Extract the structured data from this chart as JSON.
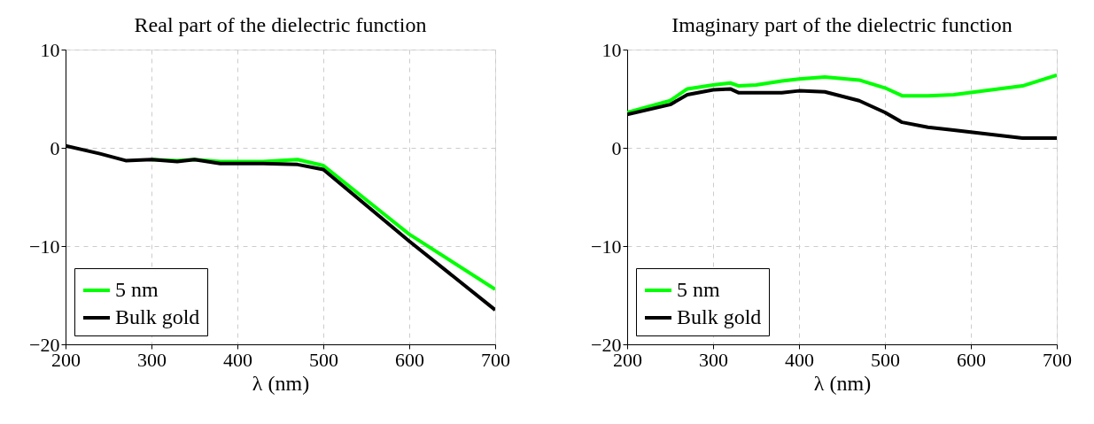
{
  "chart_data": [
    {
      "type": "line",
      "title": "Real part of the dielectric function",
      "xlabel": "λ (nm)",
      "xlim": [
        200,
        700
      ],
      "xticks": [
        200,
        300,
        400,
        500,
        600,
        700
      ],
      "ylim": [
        -20,
        10
      ],
      "yticks": [
        -20,
        -10,
        0,
        10
      ],
      "grid": true,
      "legend": "bottom left",
      "line_style": "solid",
      "marker": "none",
      "x": [
        200,
        240,
        270,
        300,
        330,
        350,
        380,
        430,
        470,
        500,
        600,
        700
      ],
      "series": [
        {
          "name": "5 nm",
          "color": "#00ff00",
          "values": [
            null,
            null,
            null,
            -1.2,
            -1.3,
            -1.2,
            -1.4,
            -1.4,
            -1.2,
            -1.8,
            -8.8,
            -14.4
          ]
        },
        {
          "name": "Bulk gold",
          "color": "#000000",
          "values": [
            0.2,
            -0.6,
            -1.3,
            -1.2,
            -1.4,
            -1.2,
            -1.6,
            -1.6,
            -1.7,
            -2.2,
            -9.5,
            -16.5
          ]
        }
      ]
    },
    {
      "type": "line",
      "title": "Imaginary part of the dielectric function",
      "xlabel": "λ (nm)",
      "xlim": [
        200,
        700
      ],
      "xticks": [
        200,
        300,
        400,
        500,
        600,
        700
      ],
      "ylim": [
        -20,
        10
      ],
      "yticks": [
        -20,
        -10,
        0,
        10
      ],
      "grid": true,
      "legend": "bottom left",
      "line_style": "solid",
      "marker": "none",
      "x": [
        200,
        250,
        270,
        300,
        320,
        330,
        350,
        380,
        400,
        430,
        470,
        500,
        520,
        550,
        580,
        660,
        700
      ],
      "series": [
        {
          "name": "5 nm",
          "color": "#00ff00",
          "values": [
            3.6,
            4.8,
            6.0,
            6.4,
            6.6,
            6.3,
            6.4,
            6.8,
            7.0,
            7.2,
            6.9,
            6.1,
            5.3,
            5.3,
            5.4,
            6.3,
            7.4
          ]
        },
        {
          "name": "Bulk gold",
          "color": "#000000",
          "values": [
            3.4,
            4.4,
            5.4,
            5.9,
            6.0,
            5.6,
            5.6,
            5.6,
            5.8,
            5.7,
            4.8,
            3.6,
            2.6,
            2.1,
            1.8,
            1.0,
            1.0
          ]
        }
      ]
    }
  ]
}
